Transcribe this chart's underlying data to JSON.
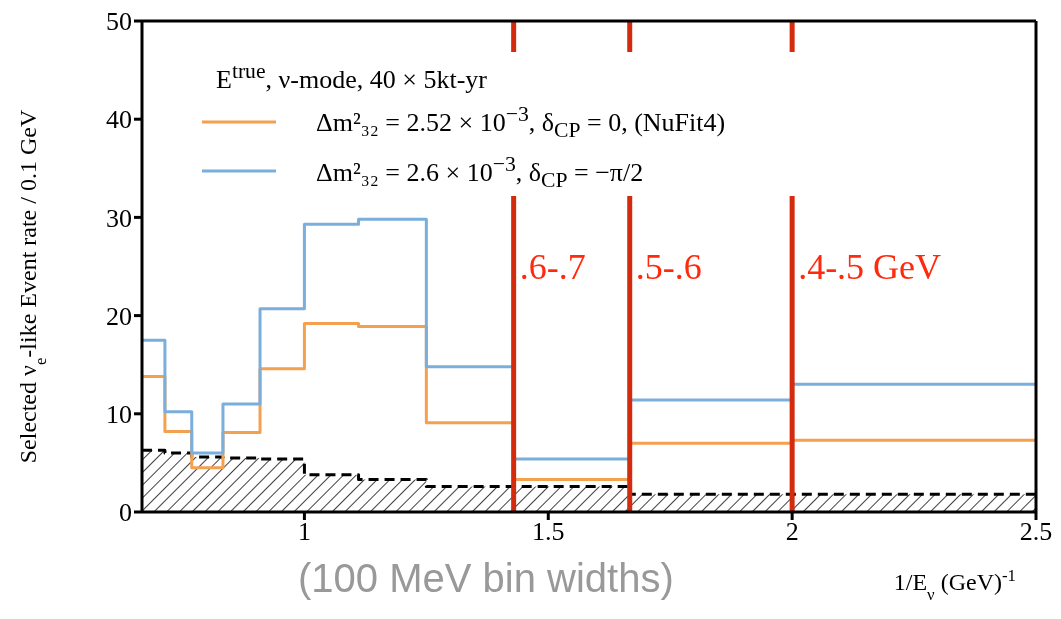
{
  "chart_data": {
    "type": "step",
    "legend_title": "E$^{true}$, ν-mode, 40 × 5kt-yr",
    "xlabel": "1/E$_{ν}$ (GeV)$^{-1}$",
    "ylabel": "Selected ν$_{e}$-like Event rate / 0.1 GeV",
    "annotations": [
      "(100 MeV bin widths)",
      {
        "text": ".6-.7",
        "x": 1.429,
        "y": 25
      },
      {
        "text": ".5-.6",
        "x": 1.667,
        "y": 25
      },
      {
        "text": ".4-.5 GeV",
        "x": 2.0,
        "y": 25
      }
    ],
    "x": [
      0.667,
      0.714,
      0.769,
      0.833,
      0.909,
      1.0,
      1.111,
      1.25,
      1.429,
      1.667,
      2.0,
      2.5
    ],
    "series": [
      {
        "type": "area",
        "color": "#000000",
        "line_style": "dashed",
        "x": [
          0.667,
          0.714,
          0.714,
          0.769,
          0.769,
          0.833,
          0.833,
          0.909,
          0.909,
          1.0,
          1.0,
          1.111,
          1.111,
          1.25,
          1.25,
          1.429,
          1.429,
          1.667,
          1.667,
          2.0,
          2.0,
          2.5
        ],
        "values": [
          6.3,
          6.3,
          6.0,
          6.0,
          5.6,
          5.6,
          5.5,
          5.5,
          5.4,
          5.4,
          3.8,
          3.8,
          3.3,
          3.3,
          2.6,
          2.6,
          2.6,
          2.6,
          1.8,
          1.8,
          1.8,
          1.8
        ]
      },
      {
        "name": "Δm²₃₂ = 2.52 × 10$^{−3}$, δ$_{CP}$ = 0, (NuFit4)",
        "color": "#f5a04f",
        "values": [
          13.8,
          8.2,
          4.5,
          8.1,
          14.6,
          19.2,
          18.9,
          9.1,
          3.3,
          7.0,
          7.3,
          7.3
        ]
      },
      {
        "name": "Δm²₃₂ = 2.6 × 10$^{−3}$, δ$_{CP}$ = −π/2",
        "color": "#7aaedc",
        "values": [
          17.5,
          10.2,
          6.0,
          11.0,
          20.7,
          29.3,
          29.8,
          14.8,
          5.4,
          11.4,
          13.0,
          13.0
        ]
      }
    ],
    "ref_lines": [
      {
        "axis": "x",
        "value": 1.429,
        "color": "#d42a0e"
      },
      {
        "axis": "x",
        "value": 1.667,
        "color": "#d42a0e"
      },
      {
        "axis": "x",
        "value": 2.0,
        "color": "#d42a0e"
      }
    ],
    "xlim": [
      0.667,
      2.5
    ],
    "xticks": [
      1,
      1.5,
      2,
      2.5
    ],
    "ylim": [
      0,
      50
    ],
    "yticks": [
      0,
      10,
      20,
      30,
      40,
      50
    ],
    "legend": "top left"
  }
}
